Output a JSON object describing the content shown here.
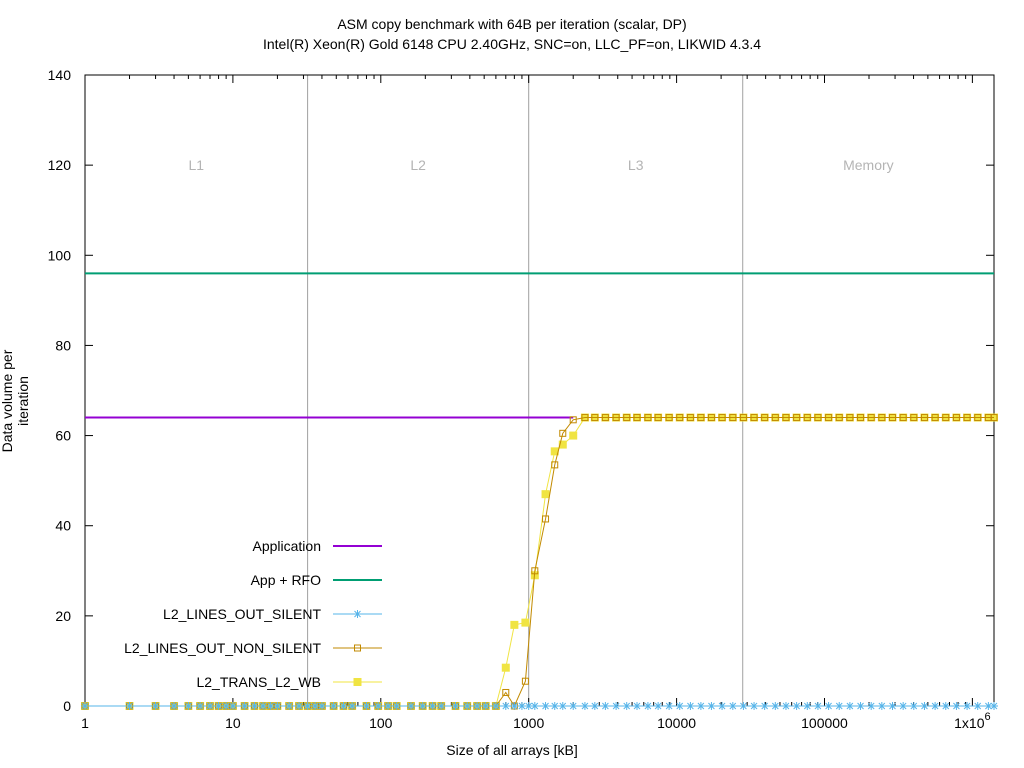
{
  "chart_data": {
    "type": "line",
    "title": "ASM copy benchmark with 64B per iteration (scalar, DP)",
    "subtitle": "Intel(R) Xeon(R) Gold 6148 CPU 2.40GHz, SNC=on, LLC_PF=on, LIKWID 4.3.4",
    "xlabel": "Size of all arrays [kB]",
    "ylabel": "Data volume per iteration",
    "x_scale": "log",
    "xlim": [
      1,
      1400000
    ],
    "ylim": [
      0,
      140
    ],
    "x_ticks": [
      {
        "value": 1,
        "label": "1"
      },
      {
        "value": 10,
        "label": "10"
      },
      {
        "value": 100,
        "label": "100"
      },
      {
        "value": 1000,
        "label": "1000"
      },
      {
        "value": 10000,
        "label": "10000"
      },
      {
        "value": 100000,
        "label": "100000"
      },
      {
        "value": 1000000,
        "label": "1x10",
        "superscript": "6"
      }
    ],
    "y_ticks": [
      0,
      20,
      40,
      60,
      80,
      100,
      120,
      140
    ],
    "regions": [
      {
        "label": "L1",
        "from": 1,
        "to": 32
      },
      {
        "label": "L2",
        "from": 32,
        "to": 1000
      },
      {
        "label": "L3",
        "from": 1000,
        "to": 28000
      },
      {
        "label": "Memory",
        "from": 28000,
        "to": 1400000
      }
    ],
    "region_boundaries": [
      32,
      1000,
      28000
    ],
    "legend_position": "bottom-left",
    "series": [
      {
        "name": "Application",
        "color": "#9400d3",
        "marker": "none",
        "points": [
          [
            1,
            64
          ],
          [
            2000,
            64
          ]
        ]
      },
      {
        "name": "App + RFO",
        "color": "#009e73",
        "marker": "none",
        "points": [
          [
            1,
            96
          ],
          [
            1400000,
            96
          ]
        ]
      },
      {
        "name": "L2_LINES_OUT_SILENT",
        "color": "#56b4e9",
        "marker": "star",
        "points": [
          [
            1,
            0
          ],
          [
            2,
            0
          ],
          [
            3,
            0
          ],
          [
            4,
            0
          ],
          [
            5,
            0
          ],
          [
            6,
            0
          ],
          [
            7,
            0
          ],
          [
            8,
            0
          ],
          [
            9,
            0
          ],
          [
            10,
            0
          ],
          [
            12,
            0
          ],
          [
            14,
            0
          ],
          [
            16,
            0
          ],
          [
            18,
            0
          ],
          [
            20,
            0
          ],
          [
            24,
            0
          ],
          [
            28,
            0
          ],
          [
            32,
            0
          ],
          [
            36,
            0
          ],
          [
            40,
            0
          ],
          [
            48,
            0
          ],
          [
            56,
            0
          ],
          [
            64,
            0
          ],
          [
            80,
            0
          ],
          [
            96,
            0
          ],
          [
            112,
            0
          ],
          [
            128,
            0
          ],
          [
            160,
            0
          ],
          [
            192,
            0
          ],
          [
            224,
            0
          ],
          [
            256,
            0
          ],
          [
            320,
            0
          ],
          [
            384,
            0
          ],
          [
            448,
            0
          ],
          [
            512,
            0
          ],
          [
            600,
            0
          ],
          [
            700,
            0
          ],
          [
            800,
            0
          ],
          [
            900,
            0
          ],
          [
            1000,
            0
          ],
          [
            1100,
            0
          ],
          [
            1300,
            0
          ],
          [
            1500,
            0
          ],
          [
            1700,
            0
          ],
          [
            2000,
            0
          ],
          [
            2400,
            0
          ],
          [
            2800,
            0
          ],
          [
            3300,
            0
          ],
          [
            3900,
            0
          ],
          [
            4600,
            0
          ],
          [
            5400,
            0
          ],
          [
            6400,
            0
          ],
          [
            7500,
            0
          ],
          [
            8900,
            0
          ],
          [
            10500,
            0
          ],
          [
            12400,
            0
          ],
          [
            14600,
            0
          ],
          [
            17200,
            0
          ],
          [
            20300,
            0
          ],
          [
            24000,
            0
          ],
          [
            28300,
            0
          ],
          [
            33400,
            0
          ],
          [
            39400,
            0
          ],
          [
            46500,
            0
          ],
          [
            54900,
            0
          ],
          [
            64800,
            0
          ],
          [
            76500,
            0
          ],
          [
            90300,
            0
          ],
          [
            106600,
            0
          ],
          [
            125800,
            0
          ],
          [
            148500,
            0
          ],
          [
            175300,
            0
          ],
          [
            206900,
            0
          ],
          [
            244200,
            0
          ],
          [
            288300,
            0
          ],
          [
            340300,
            0
          ],
          [
            401700,
            0
          ],
          [
            474200,
            0
          ],
          [
            559700,
            0
          ],
          [
            660700,
            0
          ],
          [
            779900,
            0
          ],
          [
            920600,
            0
          ],
          [
            1086700,
            0
          ],
          [
            1282800,
            0
          ],
          [
            1400000,
            0
          ]
        ]
      },
      {
        "name": "L2_LINES_OUT_NON_SILENT",
        "color": "#c28a00",
        "marker": "open-square",
        "points": [
          [
            1,
            0
          ],
          [
            2,
            0
          ],
          [
            3,
            0
          ],
          [
            4,
            0
          ],
          [
            5,
            0
          ],
          [
            6,
            0
          ],
          [
            7,
            0
          ],
          [
            8,
            0
          ],
          [
            9,
            0
          ],
          [
            10,
            0
          ],
          [
            12,
            0
          ],
          [
            14,
            0
          ],
          [
            16,
            0
          ],
          [
            18,
            0
          ],
          [
            20,
            0
          ],
          [
            24,
            0
          ],
          [
            28,
            0
          ],
          [
            32,
            0
          ],
          [
            36,
            0
          ],
          [
            40,
            0
          ],
          [
            48,
            0
          ],
          [
            56,
            0
          ],
          [
            64,
            0
          ],
          [
            80,
            0
          ],
          [
            96,
            0
          ],
          [
            112,
            0
          ],
          [
            128,
            0
          ],
          [
            160,
            0
          ],
          [
            192,
            0
          ],
          [
            224,
            0
          ],
          [
            256,
            0
          ],
          [
            320,
            0
          ],
          [
            384,
            0
          ],
          [
            448,
            0
          ],
          [
            512,
            0
          ],
          [
            600,
            0
          ],
          [
            700,
            3
          ],
          [
            800,
            0
          ],
          [
            950,
            5.5
          ],
          [
            1100,
            30
          ],
          [
            1300,
            41.5
          ],
          [
            1500,
            53.5
          ],
          [
            1700,
            60.5
          ],
          [
            2000,
            63.5
          ],
          [
            2400,
            64
          ],
          [
            2800,
            64
          ],
          [
            3300,
            64
          ],
          [
            3900,
            64
          ],
          [
            4600,
            64
          ],
          [
            5400,
            64
          ],
          [
            6400,
            64
          ],
          [
            7500,
            64
          ],
          [
            8900,
            64
          ],
          [
            10500,
            64
          ],
          [
            12400,
            64
          ],
          [
            14600,
            64
          ],
          [
            17200,
            64
          ],
          [
            20300,
            64
          ],
          [
            24000,
            64
          ],
          [
            28300,
            64
          ],
          [
            33400,
            64
          ],
          [
            39400,
            64
          ],
          [
            46500,
            64
          ],
          [
            54900,
            64
          ],
          [
            64800,
            64
          ],
          [
            76500,
            64
          ],
          [
            90300,
            64
          ],
          [
            106600,
            64
          ],
          [
            125800,
            64
          ],
          [
            148500,
            64
          ],
          [
            175300,
            64
          ],
          [
            206900,
            64
          ],
          [
            244200,
            64
          ],
          [
            288300,
            64
          ],
          [
            340300,
            64
          ],
          [
            401700,
            64
          ],
          [
            474200,
            64
          ],
          [
            559700,
            64
          ],
          [
            660700,
            64
          ],
          [
            779900,
            64
          ],
          [
            920600,
            64
          ],
          [
            1086700,
            64
          ],
          [
            1282800,
            64
          ],
          [
            1400000,
            64
          ]
        ]
      },
      {
        "name": "L2_TRANS_L2_WB",
        "color": "#f0e442",
        "marker": "filled-square",
        "points": [
          [
            1,
            0
          ],
          [
            2,
            0
          ],
          [
            3,
            0
          ],
          [
            4,
            0
          ],
          [
            5,
            0
          ],
          [
            6,
            0
          ],
          [
            7,
            0
          ],
          [
            8,
            0
          ],
          [
            9,
            0
          ],
          [
            10,
            0
          ],
          [
            12,
            0
          ],
          [
            14,
            0
          ],
          [
            16,
            0
          ],
          [
            18,
            0
          ],
          [
            20,
            0
          ],
          [
            24,
            0
          ],
          [
            28,
            0
          ],
          [
            32,
            0
          ],
          [
            36,
            0
          ],
          [
            40,
            0
          ],
          [
            48,
            0
          ],
          [
            56,
            0
          ],
          [
            64,
            0
          ],
          [
            80,
            0
          ],
          [
            96,
            0
          ],
          [
            112,
            0
          ],
          [
            128,
            0
          ],
          [
            160,
            0
          ],
          [
            192,
            0
          ],
          [
            224,
            0
          ],
          [
            256,
            0
          ],
          [
            320,
            0
          ],
          [
            384,
            0
          ],
          [
            448,
            0
          ],
          [
            512,
            0
          ],
          [
            600,
            0
          ],
          [
            700,
            8.5
          ],
          [
            800,
            18
          ],
          [
            950,
            18.5
          ],
          [
            1100,
            29
          ],
          [
            1300,
            47
          ],
          [
            1500,
            56.5
          ],
          [
            1700,
            58
          ],
          [
            2000,
            60
          ],
          [
            2400,
            64
          ],
          [
            2800,
            64
          ],
          [
            3300,
            64
          ],
          [
            3900,
            64
          ],
          [
            4600,
            64
          ],
          [
            5400,
            64
          ],
          [
            6400,
            64
          ],
          [
            7500,
            64
          ],
          [
            8900,
            64
          ],
          [
            10500,
            64
          ],
          [
            12400,
            64
          ],
          [
            14600,
            64
          ],
          [
            17200,
            64
          ],
          [
            20300,
            64
          ],
          [
            24000,
            64
          ],
          [
            28300,
            64
          ],
          [
            33400,
            64
          ],
          [
            39400,
            64
          ],
          [
            46500,
            64
          ],
          [
            54900,
            64
          ],
          [
            64800,
            64
          ],
          [
            76500,
            64
          ],
          [
            90300,
            64
          ],
          [
            106600,
            64
          ],
          [
            125800,
            64
          ],
          [
            148500,
            64
          ],
          [
            175300,
            64
          ],
          [
            206900,
            64
          ],
          [
            244200,
            64
          ],
          [
            288300,
            64
          ],
          [
            340300,
            64
          ],
          [
            401700,
            64
          ],
          [
            474200,
            64
          ],
          [
            559700,
            64
          ],
          [
            660700,
            64
          ],
          [
            779900,
            64
          ],
          [
            920600,
            64
          ],
          [
            1086700,
            64
          ],
          [
            1282800,
            64
          ],
          [
            1400000,
            64
          ]
        ]
      }
    ]
  }
}
